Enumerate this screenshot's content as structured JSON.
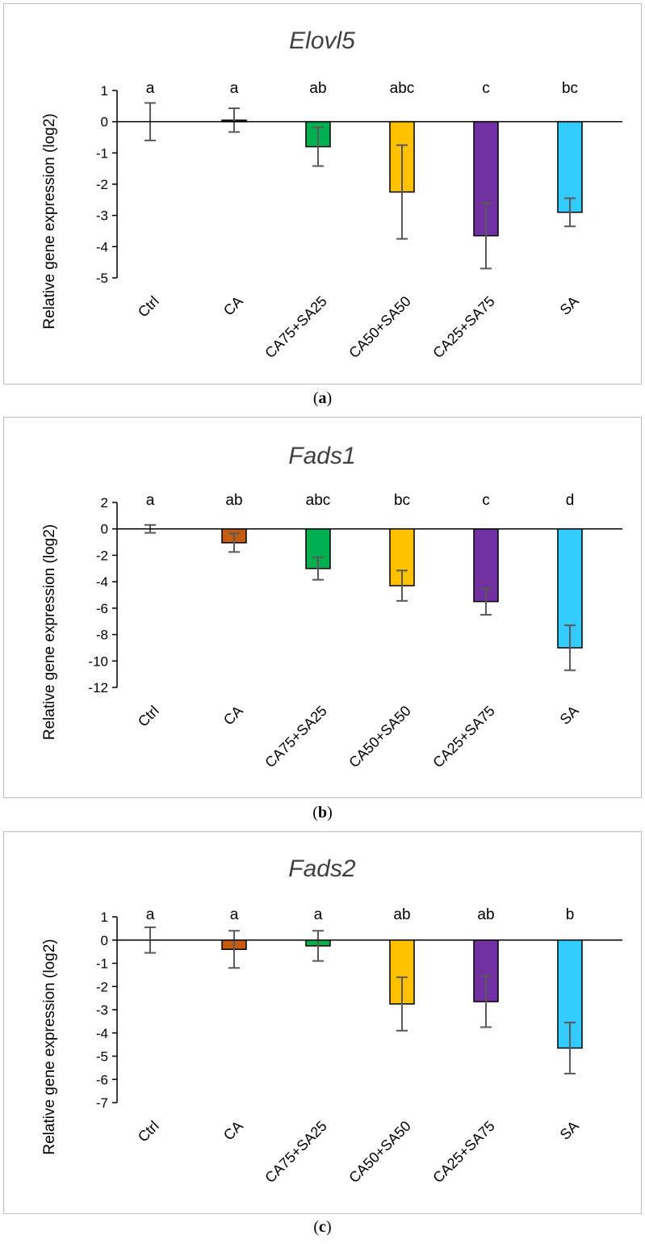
{
  "chart_data": [
    {
      "type": "bar",
      "title": "Elovl5",
      "ylabel": "Relative gene expression (log2)",
      "xlabel": "",
      "ylim": [
        -5,
        1
      ],
      "ystep": 1,
      "categories": [
        "Ctrl",
        "CA",
        "CA75+SA25",
        "CA50+SA50",
        "CA25+SA75",
        "SA"
      ],
      "values": [
        0.0,
        0.05,
        -0.8,
        -2.25,
        -3.65,
        -2.9
      ],
      "errors": [
        0.6,
        0.38,
        0.62,
        1.5,
        1.05,
        0.45
      ],
      "significance": [
        "a",
        "a",
        "ab",
        "abc",
        "c",
        "bc"
      ],
      "colors": [
        "#ffffff",
        "#c55a11",
        "#00b050",
        "#ffc000",
        "#7030a0",
        "#33ccff"
      ],
      "caption": "a"
    },
    {
      "type": "bar",
      "title": "Fads1",
      "ylabel": "Relative gene expression (log2)",
      "xlabel": "",
      "ylim": [
        -12,
        2
      ],
      "ystep": 2,
      "categories": [
        "Ctrl",
        "CA",
        "CA75+SA25",
        "CA50+SA50",
        "CA25+SA75",
        "SA"
      ],
      "values": [
        0.0,
        -1.05,
        -3.0,
        -4.3,
        -5.5,
        -9.0
      ],
      "errors": [
        0.3,
        0.7,
        0.85,
        1.15,
        1.0,
        1.7
      ],
      "significance": [
        "a",
        "ab",
        "abc",
        "bc",
        "c",
        "d"
      ],
      "colors": [
        "#ffffff",
        "#c55a11",
        "#00b050",
        "#ffc000",
        "#7030a0",
        "#33ccff"
      ],
      "caption": "b"
    },
    {
      "type": "bar",
      "title": "Fads2",
      "ylabel": "Relative gene expression (log2)",
      "xlabel": "",
      "ylim": [
        -7,
        1
      ],
      "ystep": 1,
      "categories": [
        "Ctrl",
        "CA",
        "CA75+SA25",
        "CA50+SA50",
        "CA25+SA75",
        "SA"
      ],
      "values": [
        0.0,
        -0.4,
        -0.25,
        -2.75,
        -2.65,
        -4.65
      ],
      "errors": [
        0.55,
        0.8,
        0.65,
        1.15,
        1.1,
        1.1
      ],
      "significance": [
        "a",
        "a",
        "a",
        "ab",
        "ab",
        "b"
      ],
      "colors": [
        "#ffffff",
        "#c55a11",
        "#00b050",
        "#ffc000",
        "#7030a0",
        "#33ccff"
      ],
      "caption": "c"
    }
  ]
}
